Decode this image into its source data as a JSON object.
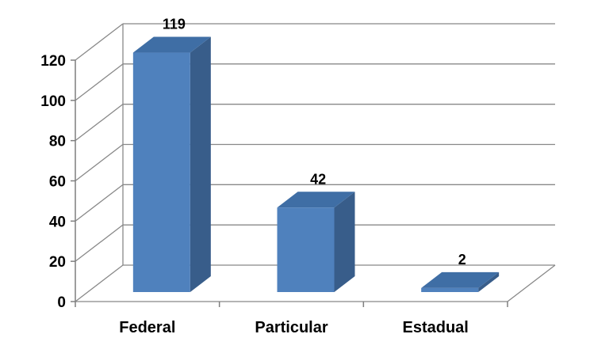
{
  "chart_data": {
    "type": "bar",
    "categories": [
      "Federal",
      "Particular",
      "Estadual"
    ],
    "values": [
      119,
      42,
      2
    ],
    "data_labels": [
      "119",
      "42",
      "2"
    ],
    "title": "",
    "xlabel": "",
    "ylabel": "",
    "ylim": [
      0,
      120
    ],
    "yticks": [
      "0",
      "20",
      "40",
      "60",
      "80",
      "100",
      "120"
    ],
    "grid": true,
    "three_d": true,
    "colors": {
      "front": "#4f81bd",
      "side": "#385d8a",
      "top": "#3f6ea5",
      "grid": "#888888"
    }
  }
}
